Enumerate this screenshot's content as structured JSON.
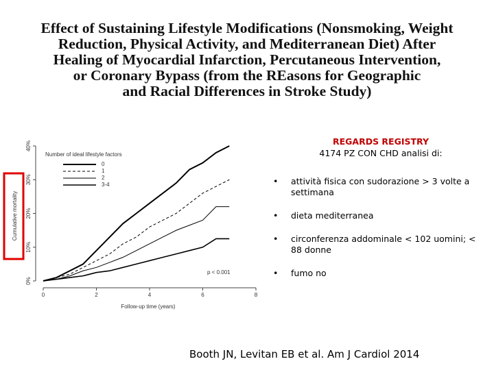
{
  "title": [
    "Effect of Sustaining Lifestyle Modifications (Nonsmoking, Weight",
    "Reduction, Physical Activity, and Mediterranean Diet) After",
    "Healing of Myocardial Infarction, Percutaneous Intervention,",
    "or Coronary Bypass (from the REasons for Geographic",
    "and Racial Differences in Stroke Study)"
  ],
  "registry": {
    "heading": "REGARDS REGISTRY",
    "subheading": "4174 PZ CON CHD analisi di:"
  },
  "bullets": [
    "attività fisica con sudorazione > 3 volte a settimana",
    "dieta mediterranea",
    "circonferenza addominale < 102 uomini; < 88 donne",
    "fumo no"
  ],
  "citation": "Booth JN, Levitan EB et al. Am J Cardiol 2014",
  "chart_data": {
    "type": "line",
    "x_label": "Follow-up time (years)",
    "y_label": "Cumulative mortality",
    "legend_title": "Number of ideal lifestyle factors",
    "annotation": "p < 0.001",
    "x": [
      0,
      0.5,
      1,
      1.5,
      2,
      2.5,
      3,
      3.5,
      4,
      4.5,
      5,
      5.5,
      6,
      6.5,
      7
    ],
    "series": [
      {
        "name": "0",
        "color": "#000000",
        "values": [
          0,
          1,
          3,
          5,
          9,
          13,
          17,
          20,
          23,
          26,
          29,
          33,
          35,
          38,
          40
        ]
      },
      {
        "name": "1",
        "color": "#000000",
        "values": [
          0,
          1,
          2,
          4,
          6,
          8,
          11,
          13,
          16,
          18,
          20,
          23,
          26,
          28,
          30
        ]
      },
      {
        "name": "2",
        "color": "#000000",
        "values": [
          0,
          0.5,
          1.5,
          3,
          4,
          5.5,
          7,
          9,
          11,
          13,
          15,
          16.5,
          18,
          22,
          22
        ]
      },
      {
        "name": "3-4",
        "color": "#000000",
        "values": [
          0,
          0.5,
          1,
          1.5,
          2.5,
          3,
          4,
          5,
          6,
          7,
          8,
          9,
          10,
          12.5,
          12.5
        ]
      }
    ],
    "xlim": [
      0,
      8
    ],
    "xticks": [
      0,
      2,
      4,
      6,
      8
    ],
    "ylim": [
      0,
      40
    ],
    "yticks": [
      {
        "value": 0,
        "label": "0%"
      },
      {
        "value": 10,
        "label": "10%"
      },
      {
        "value": 20,
        "label": "20%"
      },
      {
        "value": 30,
        "label": "30%"
      },
      {
        "value": 40,
        "label": "40%"
      }
    ]
  }
}
